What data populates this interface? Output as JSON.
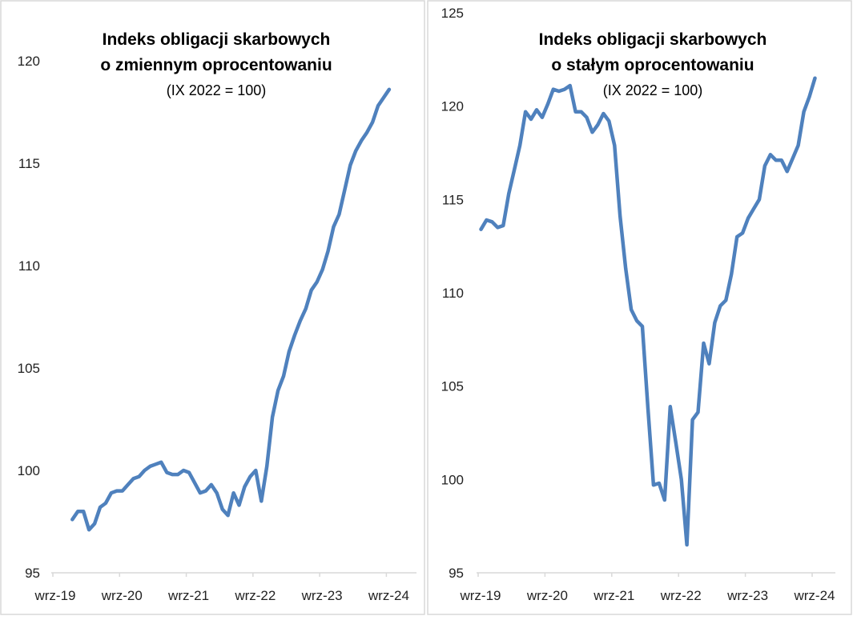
{
  "chart_data": [
    {
      "type": "line",
      "title": "Indeks obligacji skarbowych",
      "title_line2": "o zmiennym oprocentowaniu",
      "subtitle": "(IX 2022 = 100)",
      "xlabel": "",
      "ylabel": "",
      "ylim": [
        95,
        120
      ],
      "yticks": [
        "95",
        "100",
        "105",
        "110",
        "115",
        "120"
      ],
      "xticks": [
        "wrz-19",
        "wrz-20",
        "wrz-21",
        "wrz-22",
        "wrz-23",
        "wrz-24"
      ],
      "x_unit": "months since wrz-19",
      "x_start": 3,
      "color": "#4F81BD",
      "grid": false,
      "values": [
        97.6,
        98.0,
        98.0,
        97.1,
        97.4,
        98.2,
        98.4,
        98.9,
        99.0,
        99.0,
        99.3,
        99.6,
        99.7,
        100.0,
        100.2,
        100.3,
        100.4,
        99.9,
        99.8,
        99.8,
        100.0,
        99.9,
        99.4,
        98.9,
        99.0,
        99.3,
        98.9,
        98.1,
        97.8,
        98.9,
        98.3,
        99.2,
        99.7,
        100.0,
        98.5,
        100.2,
        102.6,
        103.9,
        104.6,
        105.8,
        106.6,
        107.3,
        107.9,
        108.8,
        109.2,
        109.8,
        110.7,
        111.9,
        112.5,
        113.7,
        114.9,
        115.6,
        116.1,
        116.5,
        117.0,
        117.8,
        118.2,
        118.6
      ]
    },
    {
      "type": "line",
      "title": "Indeks obligacji skarbowych",
      "title_line2": "o stałym oprocentowaniu",
      "subtitle": "(IX 2022 = 100)",
      "xlabel": "",
      "ylabel": "",
      "ylim": [
        95,
        125
      ],
      "yticks": [
        "95",
        "100",
        "105",
        "110",
        "115",
        "120",
        "125"
      ],
      "xticks": [
        "wrz-19",
        "wrz-20",
        "wrz-21",
        "wrz-22",
        "wrz-23",
        "wrz-24"
      ],
      "x_unit": "months since wrz-19",
      "x_start": 0,
      "color": "#4F81BD",
      "grid": false,
      "values": [
        113.4,
        113.9,
        113.8,
        113.5,
        113.6,
        115.3,
        116.6,
        117.9,
        119.7,
        119.3,
        119.8,
        119.4,
        120.1,
        120.9,
        120.8,
        120.9,
        121.1,
        119.7,
        119.7,
        119.4,
        118.6,
        119.0,
        119.6,
        119.2,
        117.9,
        114.1,
        111.3,
        109.1,
        108.5,
        108.2,
        103.8,
        99.7,
        99.8,
        98.9,
        103.9,
        102.0,
        100.0,
        96.5,
        103.2,
        103.6,
        107.3,
        106.2,
        108.4,
        109.3,
        109.6,
        111.0,
        113.0,
        113.2,
        114.0,
        114.5,
        115.0,
        116.8,
        117.4,
        117.1,
        117.1,
        116.5,
        117.2,
        117.9,
        119.7,
        120.5,
        121.5
      ]
    }
  ]
}
